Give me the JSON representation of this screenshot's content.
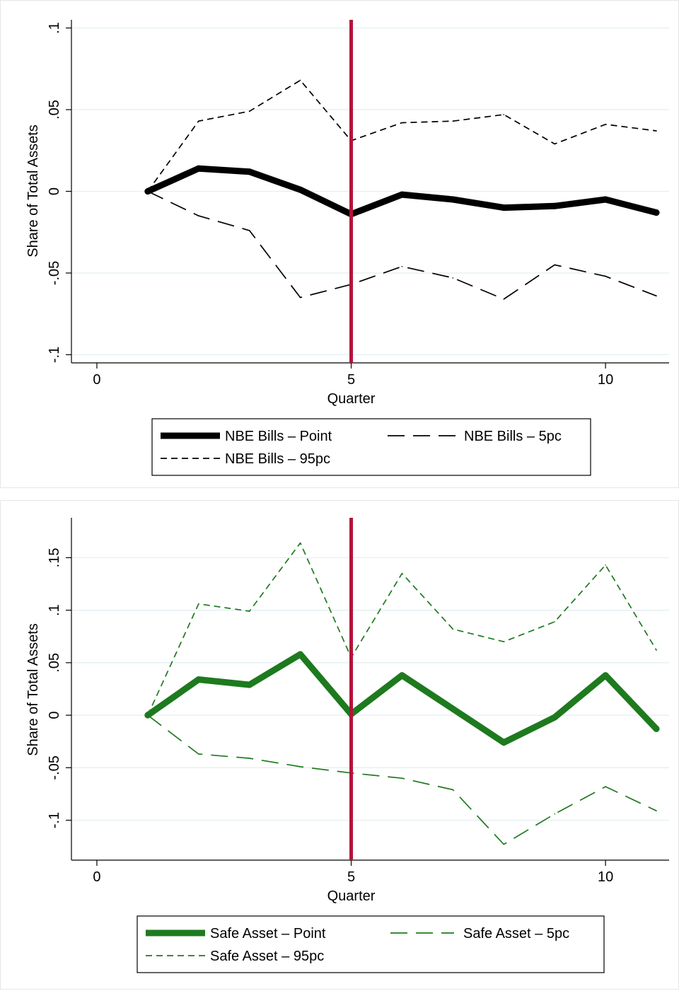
{
  "chart_data": [
    {
      "type": "line",
      "xlabel": "Quarter",
      "ylabel": "Share of Total Assets",
      "xlim": [
        -0.5,
        11.25
      ],
      "ylim": [
        -0.105,
        0.105
      ],
      "xticks": [
        0,
        5,
        10
      ],
      "xtick_labels": [
        "0",
        "5",
        "10"
      ],
      "yticks": [
        -0.1,
        -0.05,
        0,
        0.05,
        0.1
      ],
      "ytick_labels": [
        "-.1",
        "-.05",
        "0",
        ".05",
        ".1"
      ],
      "grid": true,
      "vline": {
        "x": 5,
        "color": "#b5123b"
      },
      "legend_position": "bottom",
      "x": [
        1,
        2,
        3,
        4,
        5,
        6,
        7,
        8,
        9,
        10,
        11
      ],
      "series": [
        {
          "name": "NBE Bills – Point",
          "style": "solid-thick",
          "color": "#000000",
          "values": [
            0.0,
            0.014,
            0.012,
            0.001,
            -0.014,
            -0.002,
            -0.005,
            -0.01,
            -0.009,
            -0.005,
            -0.013
          ]
        },
        {
          "name": "NBE Bills – 5pc",
          "style": "long-dash",
          "color": "#000000",
          "values": [
            0.0,
            -0.015,
            -0.024,
            -0.065,
            -0.057,
            -0.046,
            -0.053,
            -0.066,
            -0.045,
            -0.052,
            -0.064
          ]
        },
        {
          "name": "NBE Bills – 95pc",
          "style": "short-dash",
          "color": "#000000",
          "values": [
            0.0,
            0.043,
            0.049,
            0.068,
            0.031,
            0.042,
            0.043,
            0.047,
            0.029,
            0.041,
            0.037
          ]
        }
      ]
    },
    {
      "type": "line",
      "xlabel": "Quarter",
      "ylabel": "Share of Total Assets",
      "xlim": [
        -0.5,
        11.25
      ],
      "ylim": [
        -0.138,
        0.188
      ],
      "xticks": [
        0,
        5,
        10
      ],
      "xtick_labels": [
        "0",
        "5",
        "10"
      ],
      "yticks": [
        -0.1,
        -0.05,
        0,
        0.05,
        0.1,
        0.15
      ],
      "ytick_labels": [
        "-.1",
        "-.05",
        "0",
        ".05",
        ".1",
        ".15"
      ],
      "grid": true,
      "vline": {
        "x": 5,
        "color": "#b5123b"
      },
      "legend_position": "bottom",
      "x": [
        1,
        2,
        3,
        4,
        5,
        6,
        7,
        8,
        9,
        10,
        11
      ],
      "series": [
        {
          "name": "Safe Asset – Point",
          "style": "solid-thick",
          "color": "#1e7a1e",
          "values": [
            0.0,
            0.034,
            0.029,
            0.058,
            0.001,
            0.038,
            0.006,
            -0.026,
            -0.002,
            0.038,
            -0.013
          ]
        },
        {
          "name": "Safe Asset – 5pc",
          "style": "long-dash",
          "color": "#1e7a1e",
          "values": [
            0.0,
            -0.037,
            -0.041,
            -0.049,
            -0.055,
            -0.06,
            -0.071,
            -0.123,
            -0.094,
            -0.068,
            -0.091
          ]
        },
        {
          "name": "Safe Asset – 95pc",
          "style": "short-dash",
          "color": "#1e7a1e",
          "values": [
            0.0,
            0.106,
            0.099,
            0.164,
            0.055,
            0.135,
            0.082,
            0.07,
            0.089,
            0.143,
            0.062
          ]
        }
      ]
    }
  ]
}
